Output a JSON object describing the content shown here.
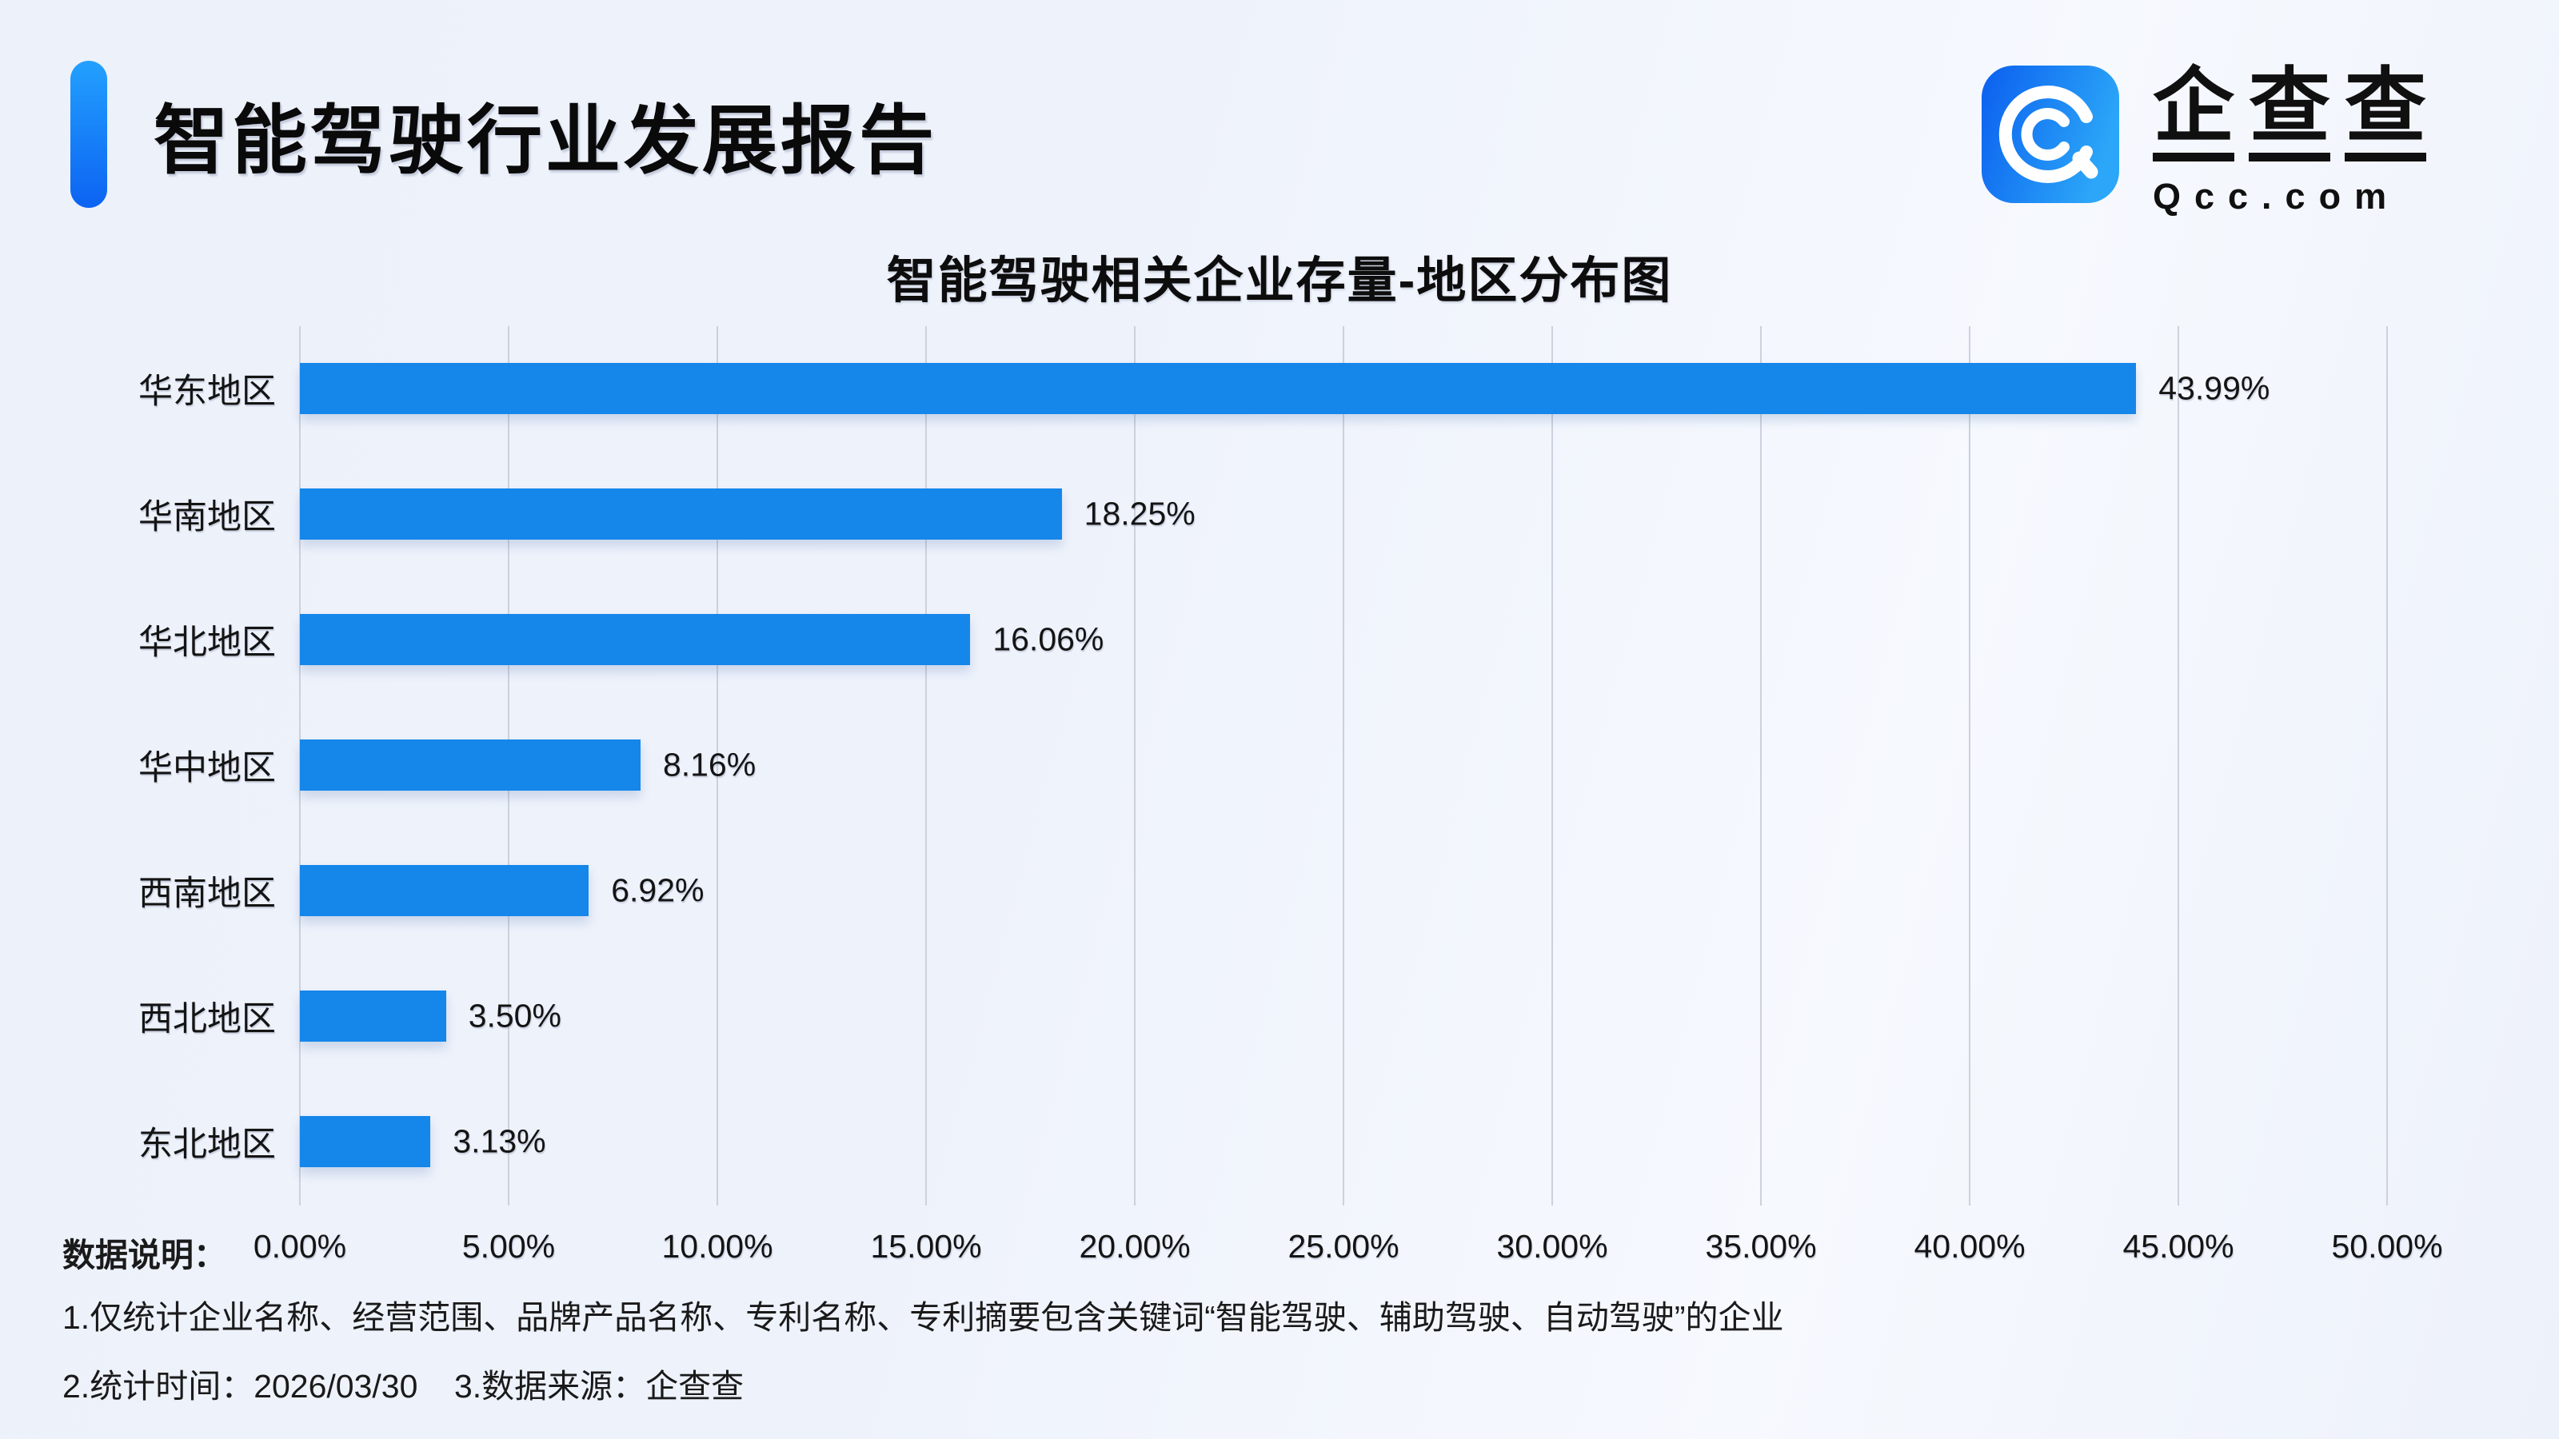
{
  "header": {
    "title": "智能驾驶行业发展报告",
    "logo": {
      "brand_chars": [
        "企",
        "查",
        "查"
      ],
      "domain": "Qcc.com",
      "icon": "qcc-magnifier-icon"
    }
  },
  "colors": {
    "bar": "#1586ea",
    "accent_top": "#23a0fe",
    "accent_bottom": "#0c63f2",
    "logo_left": "#0b5fef",
    "logo_right": "#2ba6f8",
    "background": "#edf1fa",
    "gridline": "#ccd1dc",
    "text": "#111111"
  },
  "chart_data": {
    "type": "bar",
    "orientation": "horizontal",
    "title": "智能驾驶相关企业存量-地区分布图",
    "categories": [
      "华东地区",
      "华南地区",
      "华北地区",
      "华中地区",
      "西南地区",
      "西北地区",
      "东北地区"
    ],
    "values": [
      43.99,
      18.25,
      16.06,
      8.16,
      6.92,
      3.5,
      3.13
    ],
    "value_labels": [
      "43.99%",
      "18.25%",
      "16.06%",
      "8.16%",
      "6.92%",
      "3.50%",
      "3.13%"
    ],
    "xlim": [
      0,
      50
    ],
    "x_ticks": [
      "0.00%",
      "5.00%",
      "10.00%",
      "15.00%",
      "20.00%",
      "25.00%",
      "30.00%",
      "35.00%",
      "40.00%",
      "45.00%",
      "50.00%"
    ],
    "grid": true,
    "legend": false,
    "bar_color": "#1586ea"
  },
  "footer": {
    "label": "数据说明：",
    "notes": [
      "1.仅统计企业名称、经营范围、品牌产品名称、专利名称、专利摘要包含关键词“智能驾驶、辅助驾驶、自动驾驶”的企业",
      "2.统计时间：2026/03/30    3.数据来源：企查查"
    ]
  }
}
